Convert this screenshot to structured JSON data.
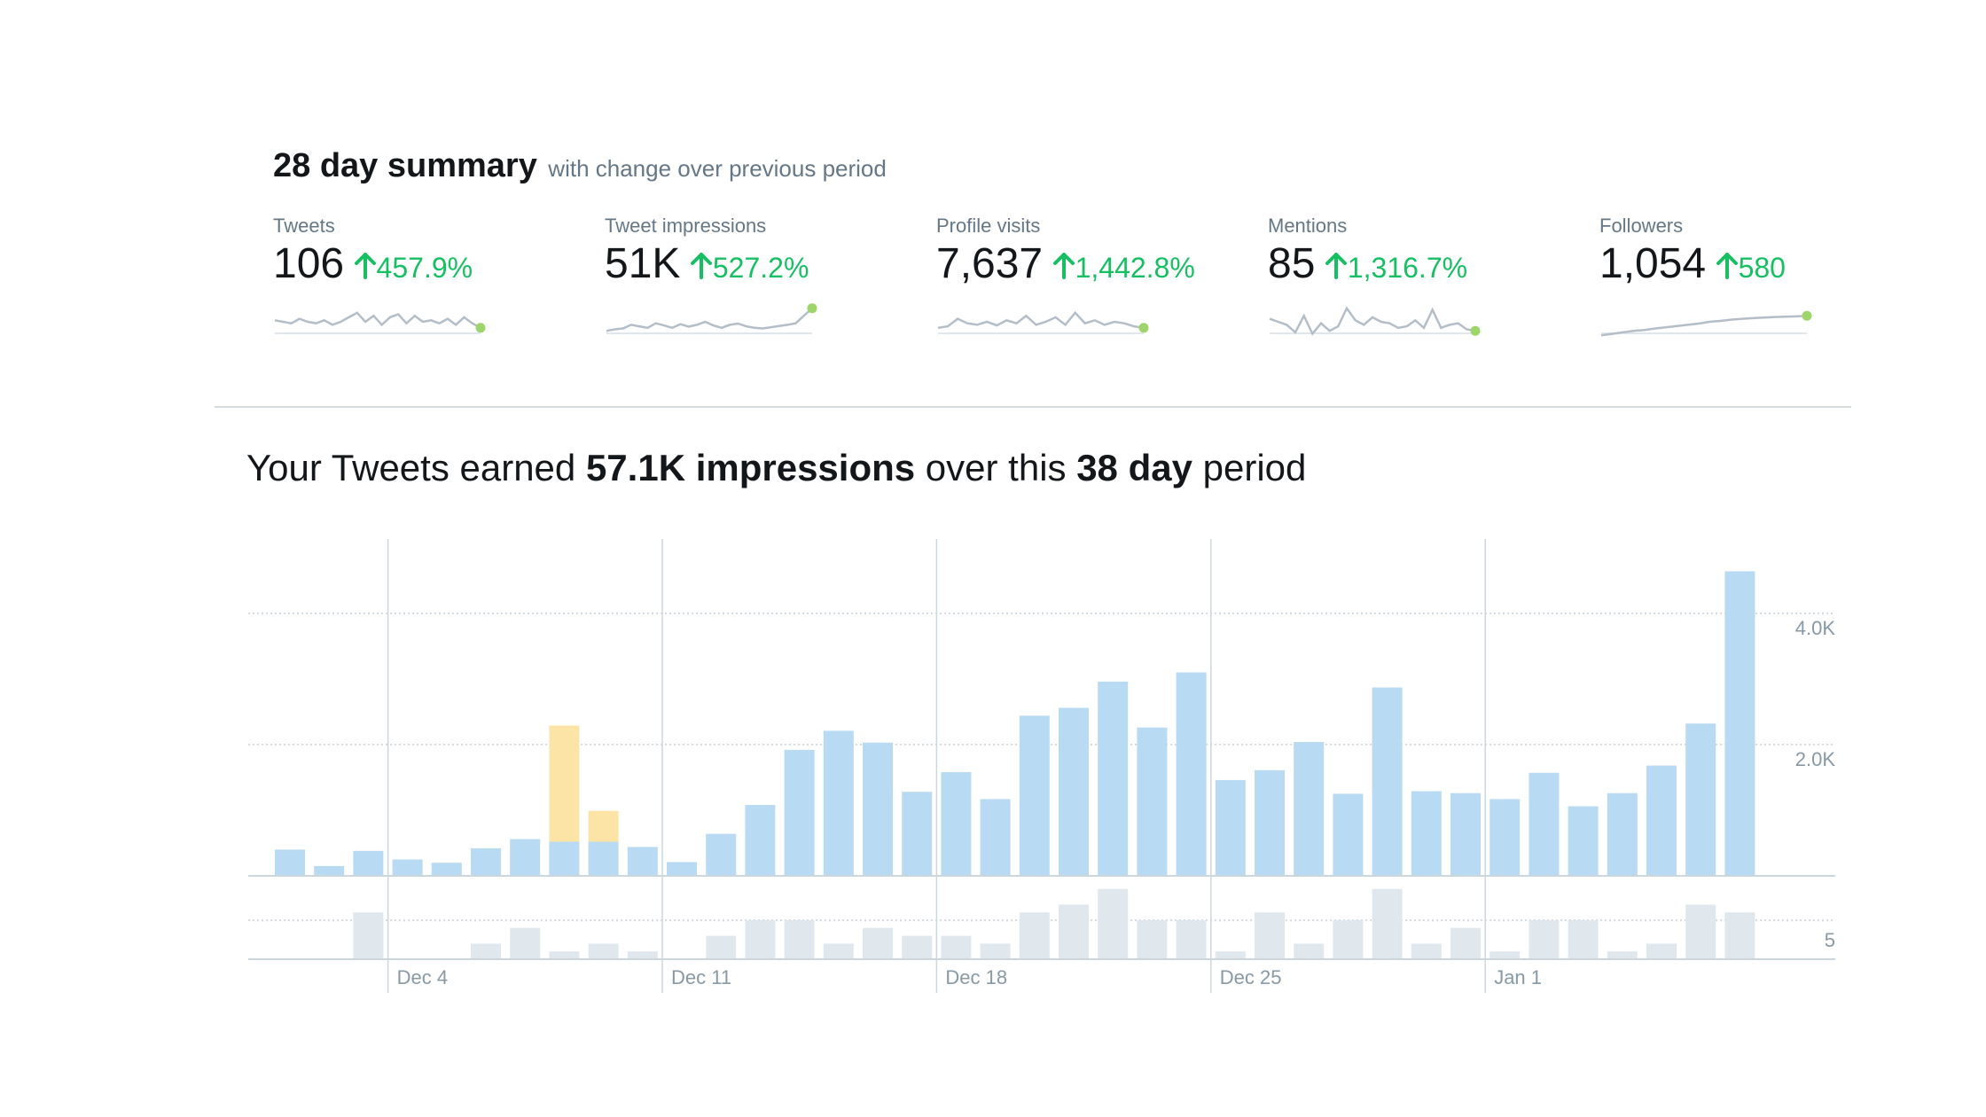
{
  "summary": {
    "title": "28 day summary",
    "subtitle": "with change over previous period"
  },
  "metrics": [
    {
      "label": "Tweets",
      "value": "106",
      "change": "457.9%",
      "spark": [
        0.45,
        0.5,
        0.55,
        0.4,
        0.5,
        0.55,
        0.45,
        0.6,
        0.5,
        0.35,
        0.2,
        0.5,
        0.3,
        0.6,
        0.35,
        0.25,
        0.55,
        0.3,
        0.5,
        0.45,
        0.55,
        0.4,
        0.6,
        0.35,
        0.55,
        0.7
      ]
    },
    {
      "label": "Tweet impressions",
      "value": "51K",
      "change": "527.2%",
      "spark": [
        0.8,
        0.75,
        0.72,
        0.6,
        0.65,
        0.7,
        0.55,
        0.62,
        0.7,
        0.58,
        0.66,
        0.6,
        0.5,
        0.62,
        0.7,
        0.6,
        0.56,
        0.65,
        0.7,
        0.72,
        0.68,
        0.64,
        0.6,
        0.55,
        0.3,
        0.05
      ]
    },
    {
      "label": "Profile visits",
      "value": "7,637",
      "change": "1,442.8%",
      "spark": [
        0.7,
        0.65,
        0.4,
        0.55,
        0.6,
        0.5,
        0.62,
        0.45,
        0.55,
        0.3,
        0.6,
        0.5,
        0.35,
        0.6,
        0.2,
        0.55,
        0.45,
        0.6,
        0.5,
        0.55,
        0.65,
        0.7
      ]
    },
    {
      "label": "Mentions",
      "value": "85",
      "change": "1,316.7%",
      "spark": [
        0.4,
        0.5,
        0.6,
        0.85,
        0.3,
        0.9,
        0.55,
        0.8,
        0.65,
        0.05,
        0.45,
        0.6,
        0.35,
        0.5,
        0.55,
        0.7,
        0.65,
        0.45,
        0.7,
        0.1,
        0.7,
        0.6,
        0.55,
        0.75,
        0.8
      ]
    },
    {
      "label": "Followers",
      "value": "1,054",
      "change": "580",
      "spark": [
        0.95,
        0.9,
        0.85,
        0.8,
        0.77,
        0.72,
        0.68,
        0.64,
        0.6,
        0.56,
        0.5,
        0.47,
        0.43,
        0.4,
        0.38,
        0.36,
        0.34,
        0.33,
        0.32,
        0.3
      ]
    }
  ],
  "headline": {
    "prefix": "Your Tweets earned",
    "impressions": "57.1K impressions",
    "middle": "over this",
    "days": "38 day",
    "suffix": "period"
  },
  "colors": {
    "impressions_bar": "#b8daf2",
    "promoted_bar": "#fce3a6",
    "engagement_bar": "#e1e8ed",
    "accent_green": "#17bf63",
    "spark_dot": "#9ed56b"
  },
  "chart_data": {
    "type": "bar",
    "series": [
      {
        "values": [
          400,
          150,
          380,
          250,
          200,
          420,
          560,
          520,
          520,
          440,
          210,
          640,
          1080,
          1920,
          2210,
          2030,
          1280,
          1580,
          1170,
          2440,
          2560,
          2960,
          2260,
          3100,
          1460,
          1610,
          2040,
          1250,
          2870,
          1290,
          1260,
          1170,
          1570,
          1060,
          1260,
          1680,
          2320,
          4640
        ]
      },
      {
        "values": [
          0,
          0,
          0,
          0,
          0,
          0,
          0,
          1770,
          470,
          0,
          0,
          0,
          0,
          0,
          0,
          0,
          0,
          0,
          0,
          0,
          0,
          0,
          0,
          0,
          0,
          0,
          0,
          0,
          0,
          0,
          0,
          0,
          0,
          0,
          0,
          0,
          0,
          0
        ]
      }
    ],
    "engagements": [
      0,
      0,
      6,
      0,
      0,
      2,
      4,
      1,
      2,
      1,
      0,
      3,
      5,
      5,
      2,
      4,
      3,
      3,
      2,
      6,
      7,
      9,
      5,
      5,
      1,
      6,
      2,
      5,
      9,
      2,
      4,
      1,
      5,
      5,
      1,
      2,
      7,
      6
    ],
    "y_ticks": [
      "2.0K",
      "4.0K"
    ],
    "y_tick_values": [
      2000,
      4000
    ],
    "ylim": [
      0,
      4700
    ],
    "engagement_tick": "5",
    "engagement_tick_value": 5,
    "engagement_ylim": [
      0,
      10
    ],
    "x_ticks": [
      {
        "label": "Dec 4",
        "index": 3
      },
      {
        "label": "Dec 11",
        "index": 10
      },
      {
        "label": "Dec 18",
        "index": 17
      },
      {
        "label": "Dec 25",
        "index": 24
      },
      {
        "label": "Jan 1",
        "index": 31
      }
    ],
    "grid": true
  }
}
